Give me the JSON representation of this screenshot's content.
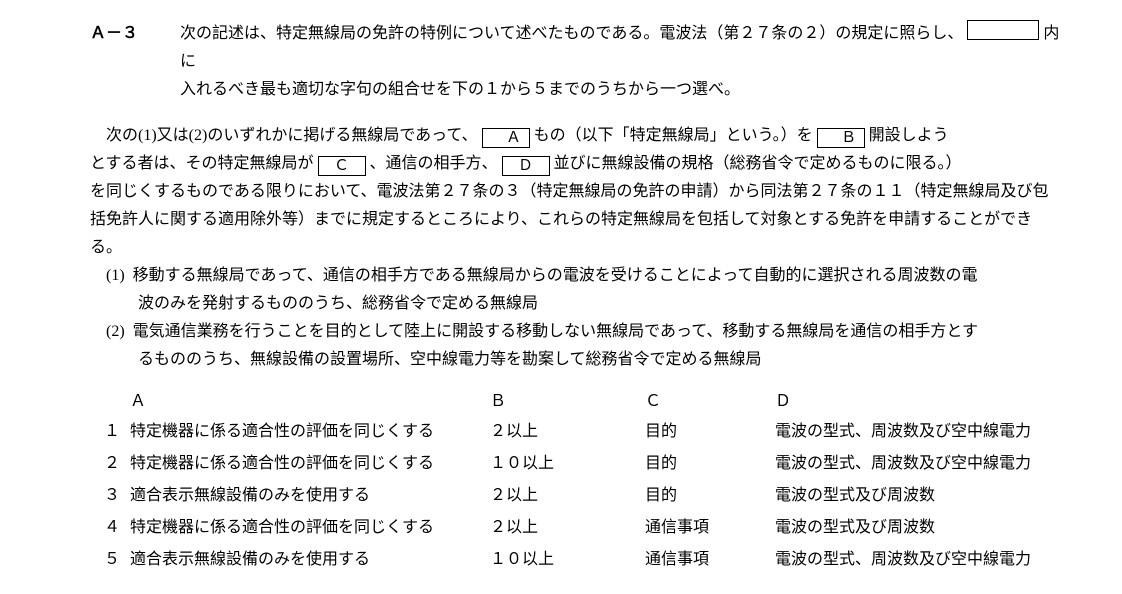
{
  "question": {
    "number": "Ａ－３",
    "header_line1": "次の記述は、特定無線局の免許の特例について述べたものである。電波法（第２７条の２）の規定に照らし、",
    "header_line1b": "内に",
    "header_line2": "入れるべき最も適切な字句の組合せを下の１から５までのうちから一つ選べ。"
  },
  "blanks": {
    "A": "Ａ",
    "B": "Ｂ",
    "C": "Ｃ",
    "D": "Ｄ"
  },
  "body": {
    "p1a": "次の(1)又は(2)のいずれかに掲げる無線局であって、",
    "p1b": "もの（以下「特定無線局」という。）を",
    "p1c": "開設しよう",
    "p2a": "とする者は、その特定無線局が",
    "p2b": "、通信の相手方、",
    "p2c": "並びに無線設備の規格（総務省令で定めるものに限る。）",
    "p3": "を同じくするものである限りにおいて、電波法第２７条の３（特定無線局の免許の申請）から同法第２７条の１１（特定無線局及び包括免許人に関する適用除外等）までに規定するところにより、これらの特定無線局を包括して対象とする免許を申請することができる。",
    "sub1_head": "(1)",
    "sub1": "移動する無線局であって、通信の相手方である無線局からの電波を受けることによって自動的に選択される周波数の電",
    "sub1b": "波のみを発射するもののうち、総務省令で定める無線局",
    "sub2_head": "(2)",
    "sub2": "電気通信業務を行うことを目的として陸上に開設する移動しない無線局であって、移動する無線局を通信の相手方とす",
    "sub2b": "るもののうち、無線設備の設置場所、空中線電力等を勘案して総務省令で定める無線局"
  },
  "cols": {
    "A": "Ａ",
    "B": "Ｂ",
    "C": "Ｃ",
    "D": "Ｄ"
  },
  "choices": [
    {
      "n": "１",
      "A": "特定機器に係る適合性の評価を同じくする",
      "B": "２以上",
      "C": "目的",
      "D": "電波の型式、周波数及び空中線電力"
    },
    {
      "n": "２",
      "A": "特定機器に係る適合性の評価を同じくする",
      "B": "１０以上",
      "C": "目的",
      "D": "電波の型式、周波数及び空中線電力"
    },
    {
      "n": "３",
      "A": "適合表示無線設備のみを使用する",
      "B": "２以上",
      "C": "目的",
      "D": "電波の型式及び周波数"
    },
    {
      "n": "４",
      "A": "特定機器に係る適合性の評価を同じくする",
      "B": "２以上",
      "C": "通信事項",
      "D": "電波の型式及び周波数"
    },
    {
      "n": "５",
      "A": "適合表示無線設備のみを使用する",
      "B": "１０以上",
      "C": "通信事項",
      "D": "電波の型式、周波数及び空中線電力"
    }
  ]
}
